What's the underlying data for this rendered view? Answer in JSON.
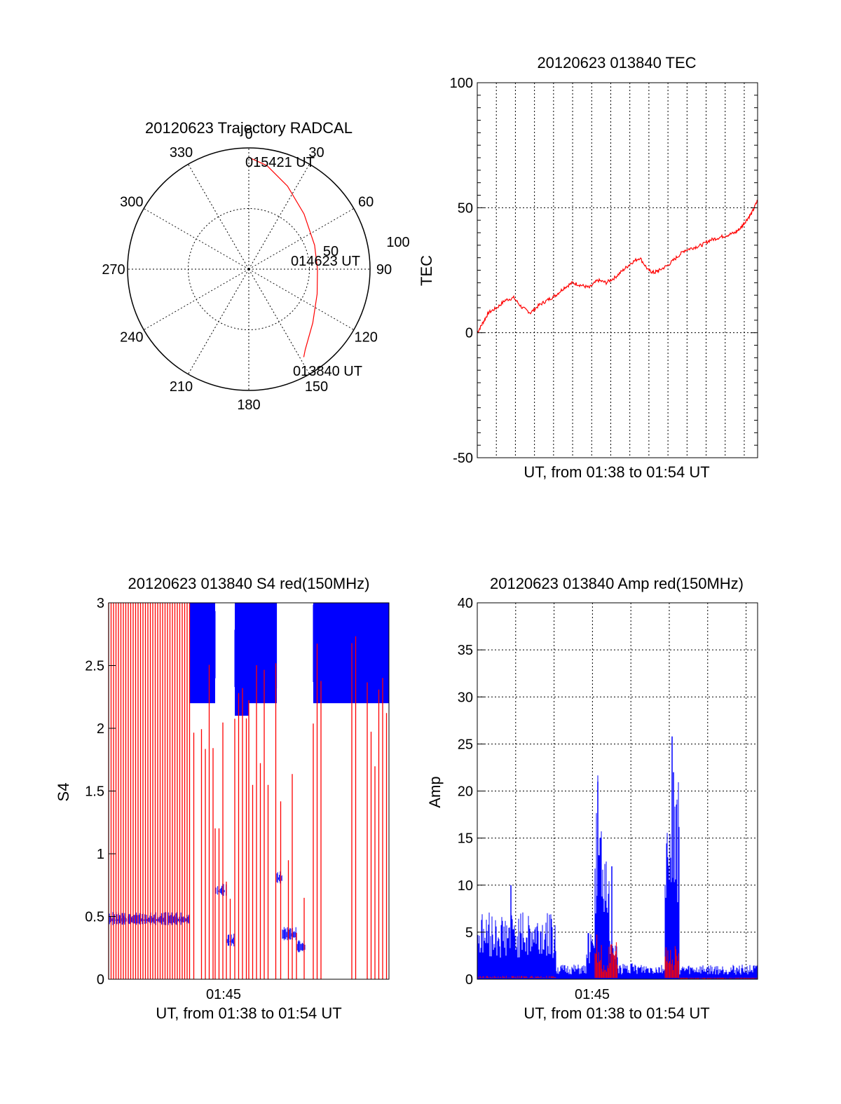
{
  "colors": {
    "red": "#ff0000",
    "blue": "#0000ff",
    "axis": "#000000",
    "grid": "#000000"
  },
  "chart_data": [
    {
      "id": "trajectory",
      "type": "scatter",
      "projection": "polar",
      "title": "20120623 Trajectory RADCAL",
      "azimuth_labels": [
        "0",
        "30",
        "60",
        "90",
        "120",
        "150",
        "180",
        "210",
        "240",
        "270",
        "300",
        "330"
      ],
      "radial_labels": [
        "50",
        "100"
      ],
      "rlim": [
        0,
        90
      ],
      "grid": true,
      "annotations": [
        "015421 UT",
        "014623 UT",
        "013840 UT"
      ],
      "series": [
        {
          "color": "red",
          "points": [
            {
              "az": 0,
              "r": 83
            },
            {
              "az": 10,
              "r": 78
            },
            {
              "az": 25,
              "r": 68
            },
            {
              "az": 45,
              "r": 58
            },
            {
              "az": 70,
              "r": 52
            },
            {
              "az": 90,
              "r": 51
            },
            {
              "az": 110,
              "r": 54
            },
            {
              "az": 130,
              "r": 62
            },
            {
              "az": 145,
              "r": 73
            },
            {
              "az": 148,
              "r": 77
            }
          ]
        }
      ]
    },
    {
      "id": "tec",
      "type": "line",
      "title": "20120623 013840 TEC",
      "xlabel": "UT, from 01:38 to 01:54 UT",
      "ylabel": "TEC",
      "ylim": [
        -50,
        100
      ],
      "yticks": [
        "100",
        "50",
        "0",
        "-50"
      ],
      "xlim": [
        0,
        1
      ],
      "grid": true,
      "series": [
        {
          "color": "red",
          "x": [
            0.0,
            0.02,
            0.04,
            0.07,
            0.1,
            0.13,
            0.16,
            0.19,
            0.22,
            0.25,
            0.28,
            0.31,
            0.34,
            0.37,
            0.4,
            0.43,
            0.46,
            0.49,
            0.52,
            0.55,
            0.58,
            0.61,
            0.63,
            0.65,
            0.68,
            0.71,
            0.74,
            0.77,
            0.8,
            0.83,
            0.86,
            0.89,
            0.92,
            0.94,
            0.96,
            0.98,
            1.0
          ],
          "y": [
            0,
            4,
            8,
            10,
            13,
            14,
            10,
            8,
            11,
            13,
            15,
            18,
            20,
            19,
            18,
            21,
            20,
            22,
            25,
            28,
            30,
            25,
            24,
            25,
            27,
            30,
            33,
            34,
            35,
            37,
            38,
            39,
            40,
            42,
            45,
            48,
            53
          ]
        }
      ]
    },
    {
      "id": "s4",
      "type": "line",
      "title": "20120623 013840 S4 red(150MHz)",
      "xlabel": "UT, from 01:38 to 01:54 UT",
      "ylabel": "S4",
      "ylim": [
        0,
        3
      ],
      "yticks": [
        "3",
        "2.5",
        "2",
        "1.5",
        "1",
        "0.5",
        "0"
      ],
      "xticks": [
        {
          "x": 0.41,
          "label": "01:45"
        }
      ],
      "xlim": [
        0,
        1
      ],
      "grid": false,
      "series": [
        {
          "name": "",
          "color": "blue",
          "segments": [
            [
              0.0,
              0.29,
              0.47
            ],
            [
              0.29,
              0.38,
              2.6
            ],
            [
              0.38,
              0.42,
              0.7
            ],
            [
              0.42,
              0.45,
              0.3
            ],
            [
              0.45,
              0.5,
              2.5
            ],
            [
              0.5,
              0.6,
              2.6
            ],
            [
              0.6,
              0.62,
              0.8
            ],
            [
              0.62,
              0.67,
              0.35
            ],
            [
              0.67,
              0.7,
              0.25
            ],
            [
              0.73,
              1.0,
              2.6
            ]
          ]
        },
        {
          "name": "",
          "color": "red",
          "segments": [
            [
              0.0,
              0.29,
              2.9
            ],
            [
              0.29,
              0.38,
              2.2
            ],
            [
              0.38,
              0.42,
              1.5
            ],
            [
              0.42,
              0.45,
              0.22
            ],
            [
              0.45,
              0.5,
              2.1
            ],
            [
              0.5,
              0.6,
              2.0
            ],
            [
              0.6,
              0.67,
              1.5
            ],
            [
              0.67,
              0.7,
              0.22
            ],
            [
              0.73,
              1.0,
              2.2
            ]
          ]
        }
      ]
    },
    {
      "id": "amp",
      "type": "line",
      "title": "20120623 013840 Amp red(150MHz)",
      "xlabel": "UT, from 01:38 to 01:54 UT",
      "ylabel": "Amp",
      "ylim": [
        0,
        40
      ],
      "yticks": [
        "40",
        "35",
        "30",
        "25",
        "20",
        "15",
        "10",
        "5",
        "0"
      ],
      "xticks": [
        {
          "x": 0.41,
          "label": "01:45"
        }
      ],
      "xlim": [
        0,
        1
      ],
      "grid": true,
      "series": [
        {
          "name": "",
          "color": "blue",
          "segments": [
            [
              0.0,
              0.28,
              5.5
            ],
            [
              0.28,
              0.39,
              1.2
            ],
            [
              0.39,
              0.42,
              4
            ],
            [
              0.42,
              0.445,
              17
            ],
            [
              0.445,
              0.47,
              10
            ],
            [
              0.47,
              0.5,
              4
            ],
            [
              0.5,
              0.67,
              1.3
            ],
            [
              0.67,
              0.7,
              12
            ],
            [
              0.7,
              0.72,
              18
            ],
            [
              0.72,
              1.0,
              1.2
            ]
          ],
          "peaks": [
            [
              0.43,
              21
            ],
            [
              0.48,
              12
            ],
            [
              0.695,
              25.8
            ],
            [
              0.7,
              22
            ],
            [
              0.12,
              10
            ]
          ]
        },
        {
          "name": "",
          "color": "red",
          "segments": [
            [
              0.0,
              0.28,
              0.3
            ],
            [
              0.42,
              0.445,
              4
            ],
            [
              0.445,
              0.47,
              1.5
            ],
            [
              0.47,
              0.5,
              4.5
            ],
            [
              0.67,
              0.72,
              3
            ],
            [
              0.72,
              1.0,
              0.1
            ]
          ]
        }
      ]
    }
  ]
}
